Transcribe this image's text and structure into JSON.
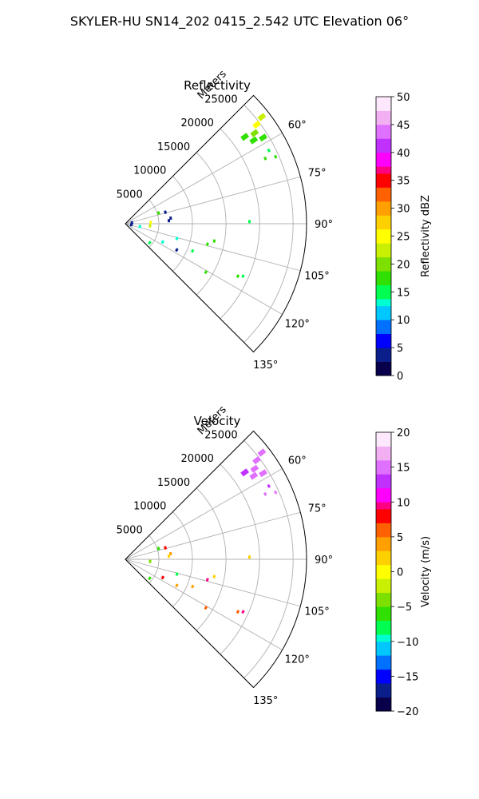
{
  "suptitle": "SKYLER-HU  SN14_202  0415_2.542 UTC Elevation 06°",
  "colormap_stops": [
    "#08004a",
    "#0a1e8c",
    "#0000ff",
    "#0070ff",
    "#00c8ff",
    "#00ffd0",
    "#00ff50",
    "#30e000",
    "#7ee000",
    "#c8f000",
    "#ffff00",
    "#ffd000",
    "#ffa000",
    "#ff6000",
    "#ff0000",
    "#ff0080",
    "#ff00ff",
    "#c030ff",
    "#e070ff",
    "#f2b0f2",
    "#fde8fd"
  ],
  "chart_data": [
    {
      "type": "polar-sector",
      "title": "Reflectivity",
      "radial_label": "Meters",
      "radial_ticks": [
        5000,
        10000,
        15000,
        20000,
        25000
      ],
      "radial_tick_labels": [
        "5000",
        "10000",
        "15000",
        "20000",
        "25000"
      ],
      "rmax": 27000,
      "theta_ticks": [
        60,
        75,
        90,
        105,
        120,
        135
      ],
      "theta_tick_labels": [
        "60°",
        "75°",
        "90°",
        "105°",
        "120°",
        "135°"
      ],
      "theta_range": [
        45,
        135
      ],
      "grid": true,
      "colorbar": {
        "label": "Reflectivity dBZ",
        "range": [
          0,
          50
        ],
        "ticks": [
          0,
          5,
          10,
          15,
          20,
          25,
          30,
          35,
          40,
          45,
          50
        ],
        "tick_labels": [
          "0",
          "5",
          "10",
          "15",
          "20",
          "25",
          "30",
          "35",
          "40",
          "45",
          "50"
        ]
      },
      "echoes": [
        {
          "az": 53,
          "r": 24500,
          "v": 24
        },
        {
          "az": 55,
          "r": 23500,
          "v": 20
        },
        {
          "az": 52,
          "r": 25800,
          "v": 23
        },
        {
          "az": 57,
          "r": 22800,
          "v": 18
        },
        {
          "az": 54,
          "r": 22000,
          "v": 17
        },
        {
          "az": 58,
          "r": 24200,
          "v": 19
        },
        {
          "az": 63,
          "r": 24000,
          "v": 16
        },
        {
          "az": 65,
          "r": 23000,
          "v": 17
        },
        {
          "az": 66,
          "r": 24500,
          "v": 18
        },
        {
          "az": 74,
          "r": 6200,
          "v": 3
        },
        {
          "az": 72,
          "r": 5200,
          "v": 19
        },
        {
          "az": 83,
          "r": 6800,
          "v": 4
        },
        {
          "az": 86,
          "r": 6500,
          "v": 3
        },
        {
          "az": 87,
          "r": 3800,
          "v": 25
        },
        {
          "az": 95,
          "r": 3700,
          "v": 23
        },
        {
          "az": 89,
          "r": 18500,
          "v": 15
        },
        {
          "az": 101,
          "r": 13500,
          "v": 17
        },
        {
          "az": 104,
          "r": 12600,
          "v": 18
        },
        {
          "az": 112,
          "r": 10800,
          "v": 15
        },
        {
          "az": 116,
          "r": 6200,
          "v": 12
        },
        {
          "az": 117,
          "r": 8600,
          "v": 3
        },
        {
          "az": 121,
          "r": 14000,
          "v": 18
        },
        {
          "az": 115,
          "r": 18500,
          "v": 18
        },
        {
          "az": 114,
          "r": 19200,
          "v": 16
        },
        {
          "az": 128,
          "r": 4600,
          "v": 15
        },
        {
          "az": 101,
          "r": 2200,
          "v": 14
        },
        {
          "az": 82,
          "r": 1000,
          "v": 3
        },
        {
          "az": 100,
          "r": 900,
          "v": 4
        },
        {
          "az": 106,
          "r": 8000,
          "v": 14
        }
      ]
    },
    {
      "type": "polar-sector",
      "title": "Velocity",
      "radial_label": "Meters",
      "radial_ticks": [
        5000,
        10000,
        15000,
        20000,
        25000
      ],
      "radial_tick_labels": [
        "5000",
        "10000",
        "15000",
        "20000",
        "25000"
      ],
      "rmax": 27000,
      "theta_ticks": [
        60,
        75,
        90,
        105,
        120,
        135
      ],
      "theta_tick_labels": [
        "60°",
        "75°",
        "90°",
        "105°",
        "120°",
        "135°"
      ],
      "theta_range": [
        45,
        135
      ],
      "grid": true,
      "colorbar": {
        "label": "Velocity (m/s)",
        "range": [
          -20,
          20
        ],
        "ticks": [
          -20,
          -15,
          -10,
          -5,
          0,
          5,
          10,
          15,
          20
        ],
        "tick_labels": [
          "−20",
          "−15",
          "−10",
          "−5",
          "0",
          "5",
          "10",
          "15",
          "20"
        ]
      },
      "echoes": [
        {
          "az": 53,
          "r": 24500,
          "v": 15
        },
        {
          "az": 55,
          "r": 23500,
          "v": 16
        },
        {
          "az": 52,
          "r": 25800,
          "v": 15
        },
        {
          "az": 57,
          "r": 22800,
          "v": 15
        },
        {
          "az": 54,
          "r": 22000,
          "v": 14
        },
        {
          "az": 58,
          "r": 24200,
          "v": 15
        },
        {
          "az": 63,
          "r": 24000,
          "v": 14
        },
        {
          "az": 65,
          "r": 23000,
          "v": 15
        },
        {
          "az": 66,
          "r": 24500,
          "v": 15
        },
        {
          "az": 74,
          "r": 6200,
          "v": 8
        },
        {
          "az": 72,
          "r": 5200,
          "v": -6
        },
        {
          "az": 83,
          "r": 6800,
          "v": 3
        },
        {
          "az": 86,
          "r": 6500,
          "v": 2
        },
        {
          "az": 95,
          "r": 3700,
          "v": -4
        },
        {
          "az": 89,
          "r": 18500,
          "v": 1
        },
        {
          "az": 101,
          "r": 13500,
          "v": 2
        },
        {
          "az": 104,
          "r": 12600,
          "v": 10
        },
        {
          "az": 112,
          "r": 10800,
          "v": 3
        },
        {
          "az": 116,
          "r": 6200,
          "v": 7
        },
        {
          "az": 117,
          "r": 8600,
          "v": 4
        },
        {
          "az": 121,
          "r": 14000,
          "v": 5
        },
        {
          "az": 115,
          "r": 18500,
          "v": 6
        },
        {
          "az": 114,
          "r": 19200,
          "v": 9
        },
        {
          "az": 128,
          "r": 4600,
          "v": -6
        },
        {
          "az": 106,
          "r": 8000,
          "v": -7
        }
      ]
    }
  ]
}
